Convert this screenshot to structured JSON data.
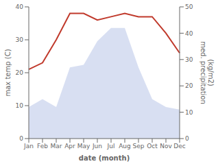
{
  "chart_data": {
    "type": "line",
    "categories": [
      "Jan",
      "Feb",
      "Mar",
      "Apr",
      "May",
      "Jun",
      "Jul",
      "Aug",
      "Sep",
      "Oct",
      "Nov",
      "Dec"
    ],
    "x_label": "date (month)",
    "y_label": "max temp (C)",
    "y2_label": "med. precipitation\n(kg/m2)",
    "ylim": [
      0,
      40
    ],
    "yticks": [
      0,
      10,
      20,
      30,
      40
    ],
    "y2lim": [
      0,
      50
    ],
    "y2ticks": [
      0,
      10,
      20,
      30,
      40,
      50
    ],
    "grid": false,
    "series": [
      {
        "type": "area",
        "axis": "y2",
        "color": "#b8c4e8",
        "values": [
          12,
          15,
          12,
          27,
          28,
          37,
          42,
          42,
          27,
          15,
          12,
          11
        ]
      },
      {
        "type": "line",
        "color": "#c0392b",
        "values": [
          21,
          23,
          30,
          38,
          38,
          36,
          37,
          38,
          37,
          37,
          32,
          26
        ]
      }
    ]
  }
}
